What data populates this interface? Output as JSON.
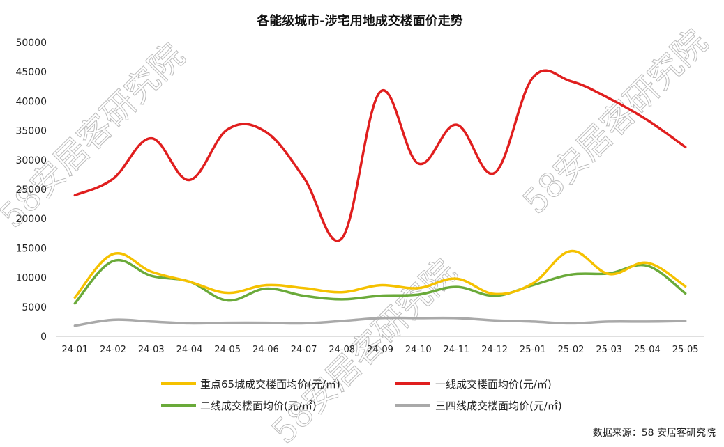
{
  "chart_data": {
    "type": "line",
    "title": "各能级城市-涉宅用地成交楼面价走势",
    "categories": [
      "24-01",
      "24-02",
      "24-03",
      "24-04",
      "24-05",
      "24-06",
      "24-07",
      "24-08",
      "24-09",
      "24-10",
      "24-11",
      "24-12",
      "25-01",
      "25-02",
      "25-03",
      "25-04",
      "25-05"
    ],
    "ylim": [
      0,
      50000
    ],
    "yticks": [
      0,
      5000,
      10000,
      15000,
      20000,
      25000,
      30000,
      35000,
      40000,
      45000,
      50000
    ],
    "grid": false,
    "legend_position": "bottom",
    "series": [
      {
        "name": "重点65城成交楼面均价(元/㎡)",
        "color": "#f5c100",
        "values": [
          6600,
          14000,
          11000,
          9300,
          7400,
          8700,
          8200,
          7500,
          8700,
          8200,
          9800,
          7200,
          9000,
          14500,
          10600,
          12500,
          8500
        ]
      },
      {
        "name": "一线成交楼面均价(元/㎡)",
        "color": "#e01e1e",
        "values": [
          24000,
          26800,
          33700,
          26600,
          35200,
          34800,
          27000,
          16700,
          41600,
          29400,
          36000,
          27800,
          44000,
          43400,
          40500,
          36800,
          32200
        ]
      },
      {
        "name": "二线成交楼面均价(元/㎡)",
        "color": "#6aaa3a",
        "values": [
          5600,
          12800,
          10300,
          9300,
          6100,
          8100,
          6900,
          6300,
          6900,
          7100,
          8400,
          6900,
          8700,
          10500,
          10700,
          12000,
          7300
        ]
      },
      {
        "name": "三四线成交楼面均价(元/㎡)",
        "color": "#a9a9a9",
        "values": [
          1800,
          2800,
          2500,
          2200,
          2300,
          2300,
          2200,
          2600,
          3100,
          3100,
          3100,
          2700,
          2500,
          2200,
          2500,
          2500,
          2600
        ]
      }
    ]
  },
  "source_note": "数据来源：58 安居客研究院",
  "watermark_text": "58安居客研究院"
}
